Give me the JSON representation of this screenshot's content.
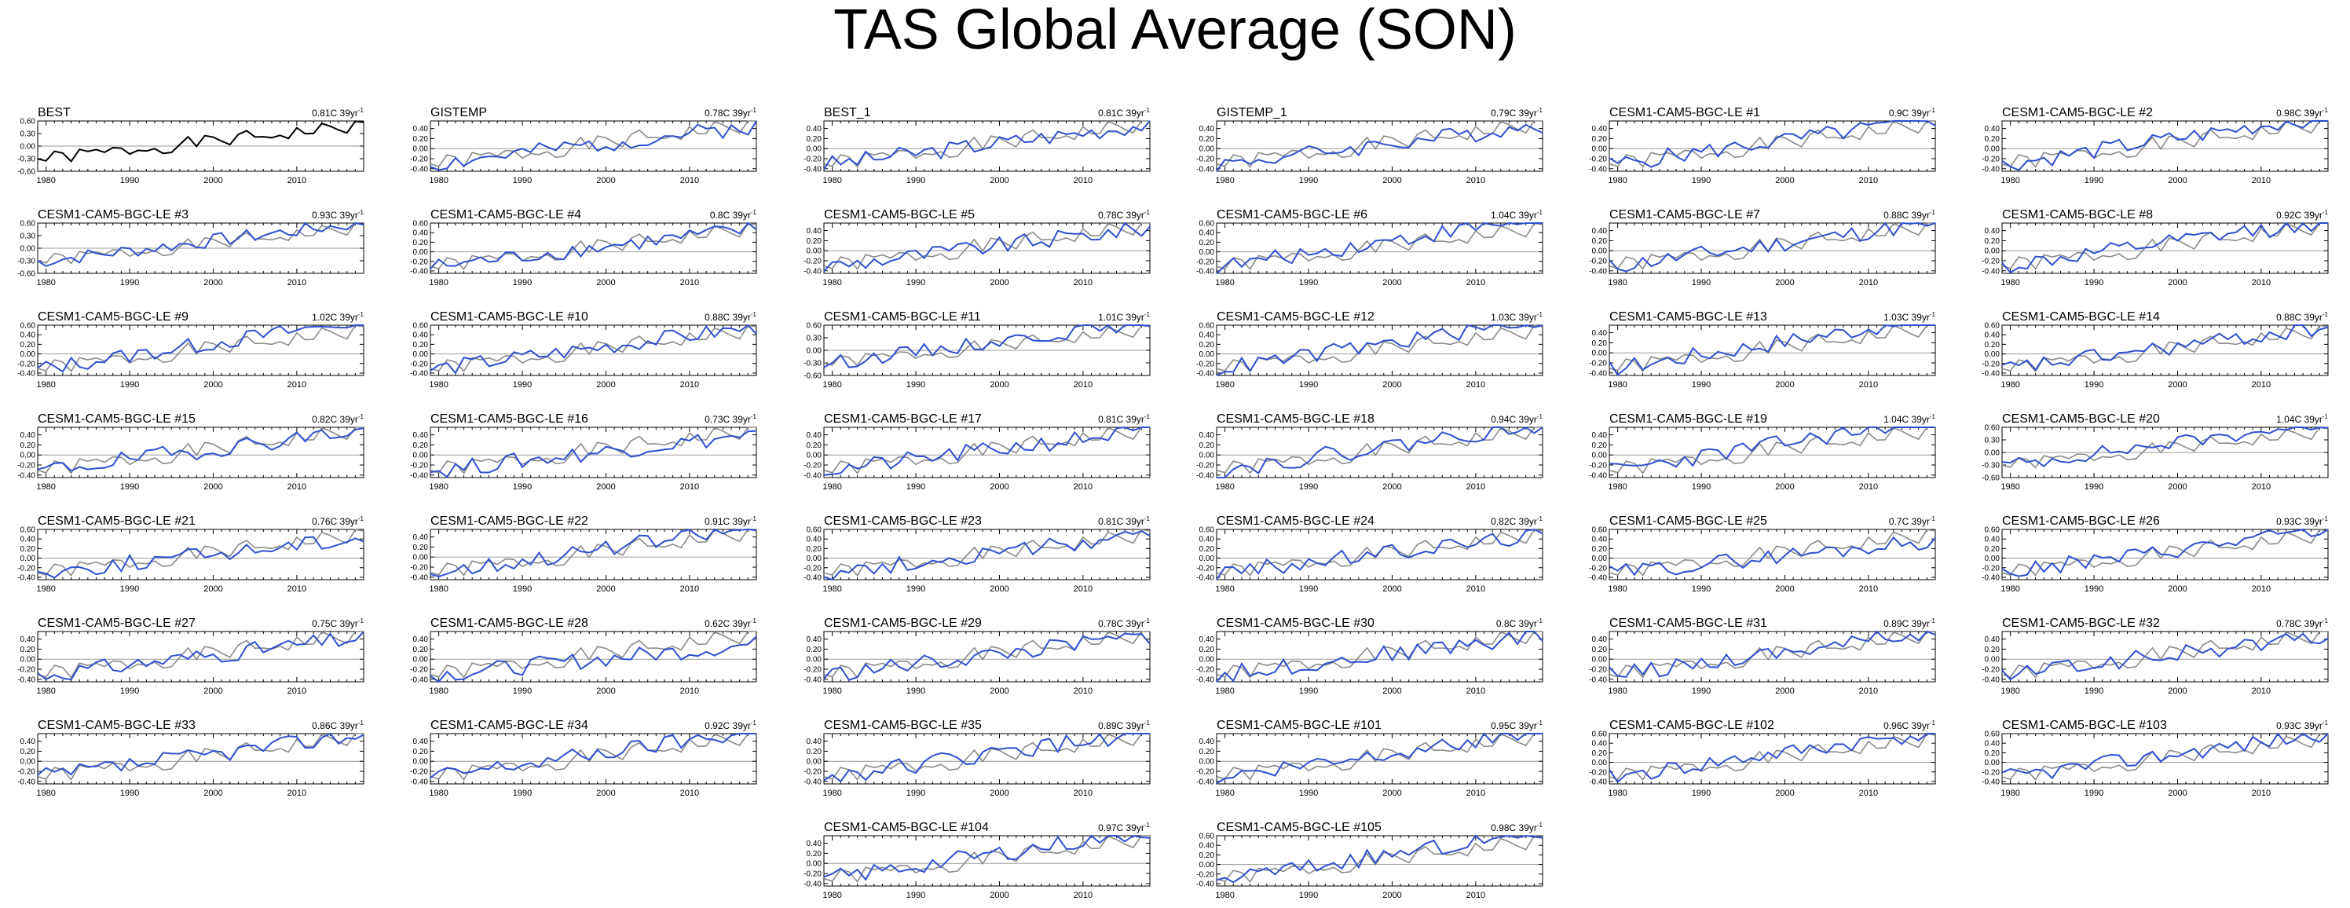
{
  "title": "TAS Global Average (SON)",
  "colors": {
    "observed": "#000000",
    "obs_overlay": "#8a8a8a",
    "model": "#3050d0",
    "zero_line": "#999999"
  },
  "chart_data": {
    "type": "line",
    "x_range": [
      1979,
      2018
    ],
    "x_ticks": [
      "1980",
      "1990",
      "2000",
      "2010"
    ],
    "panels": [
      {
        "title": "BEST",
        "trend": "0.81C 39yr",
        "yticks": [
          "0.60",
          "0.30",
          "0.00",
          "-0.30",
          "-0.60"
        ],
        "ylim": [
          -0.6,
          0.6
        ],
        "obs_only": true,
        "seed": 1
      },
      {
        "title": "GISTEMP",
        "trend": "0.78C 39yr",
        "yticks": [
          "0.40",
          "0.20",
          "0.00",
          "-0.20",
          "-0.40"
        ],
        "ylim": [
          -0.45,
          0.55
        ],
        "seed": 2
      },
      {
        "title": "BEST_1",
        "trend": "0.81C 39yr",
        "yticks": [
          "0.40",
          "0.20",
          "0.00",
          "-0.20",
          "-0.40"
        ],
        "ylim": [
          -0.45,
          0.55
        ],
        "seed": 3
      },
      {
        "title": "GISTEMP_1",
        "trend": "0.79C 39yr",
        "yticks": [
          "0.40",
          "0.20",
          "0.00",
          "-0.20",
          "-0.40"
        ],
        "ylim": [
          -0.45,
          0.55
        ],
        "seed": 4
      },
      {
        "title": "CESM1-CAM5-BGC-LE #1",
        "trend": "0.9C 39yr",
        "yticks": [
          "0.40",
          "0.20",
          "0.00",
          "-0.20",
          "-0.40"
        ],
        "ylim": [
          -0.45,
          0.55
        ],
        "seed": 5
      },
      {
        "title": "CESM1-CAM5-BGC-LE #2",
        "trend": "0.98C 39yr",
        "yticks": [
          "0.40",
          "0.20",
          "0.00",
          "-0.20",
          "-0.40"
        ],
        "ylim": [
          -0.45,
          0.55
        ],
        "seed": 6
      },
      {
        "title": "CESM1-CAM5-BGC-LE #3",
        "trend": "0.93C 39yr",
        "yticks": [
          "0.60",
          "0.30",
          "0.00",
          "-0.30",
          "-0.60"
        ],
        "ylim": [
          -0.6,
          0.6
        ],
        "seed": 7
      },
      {
        "title": "CESM1-CAM5-BGC-LE #4",
        "trend": "0.8C 39yr",
        "yticks": [
          "0.60",
          "0.40",
          "0.20",
          "0.00",
          "-0.20",
          "-0.40"
        ],
        "ylim": [
          -0.45,
          0.6
        ],
        "seed": 8
      },
      {
        "title": "CESM1-CAM5-BGC-LE #5",
        "trend": "0.78C 39yr",
        "yticks": [
          "0.40",
          "0.20",
          "0.00",
          "-0.20",
          "-0.40"
        ],
        "ylim": [
          -0.45,
          0.55
        ],
        "seed": 9
      },
      {
        "title": "CESM1-CAM5-BGC-LE #6",
        "trend": "1.04C 39yr",
        "yticks": [
          "0.60",
          "0.40",
          "0.20",
          "0.00",
          "-0.20",
          "-0.40"
        ],
        "ylim": [
          -0.45,
          0.6
        ],
        "seed": 10
      },
      {
        "title": "CESM1-CAM5-BGC-LE #7",
        "trend": "0.88C 39yr",
        "yticks": [
          "0.40",
          "0.20",
          "0.00",
          "-0.20",
          "-0.40"
        ],
        "ylim": [
          -0.45,
          0.55
        ],
        "seed": 11
      },
      {
        "title": "CESM1-CAM5-BGC-LE #8",
        "trend": "0.92C 39yr",
        "yticks": [
          "0.40",
          "0.20",
          "0.00",
          "-0.20",
          "-0.40"
        ],
        "ylim": [
          -0.45,
          0.55
        ],
        "seed": 12
      },
      {
        "title": "CESM1-CAM5-BGC-LE #9",
        "trend": "1.02C 39yr",
        "yticks": [
          "0.60",
          "0.40",
          "0.20",
          "0.00",
          "-0.20",
          "-0.40"
        ],
        "ylim": [
          -0.45,
          0.6
        ],
        "seed": 13
      },
      {
        "title": "CESM1-CAM5-BGC-LE #10",
        "trend": "0.88C 39yr",
        "yticks": [
          "0.60",
          "0.40",
          "0.20",
          "0.00",
          "-0.20",
          "-0.40"
        ],
        "ylim": [
          -0.45,
          0.6
        ],
        "seed": 14
      },
      {
        "title": "CESM1-CAM5-BGC-LE #11",
        "trend": "1.01C 39yr",
        "yticks": [
          "0.60",
          "0.30",
          "0.00",
          "-0.30",
          "-0.60"
        ],
        "ylim": [
          -0.6,
          0.6
        ],
        "seed": 15
      },
      {
        "title": "CESM1-CAM5-BGC-LE #12",
        "trend": "1.03C 39yr",
        "yticks": [
          "0.60",
          "0.40",
          "0.20",
          "0.00",
          "-0.20",
          "-0.40"
        ],
        "ylim": [
          -0.45,
          0.6
        ],
        "seed": 16
      },
      {
        "title": "CESM1-CAM5-BGC-LE #13",
        "trend": "1.03C 39yr",
        "yticks": [
          "0.40",
          "0.20",
          "0.00",
          "-0.20",
          "-0.40"
        ],
        "ylim": [
          -0.45,
          0.55
        ],
        "seed": 17
      },
      {
        "title": "CESM1-CAM5-BGC-LE #14",
        "trend": "0.88C 39yr",
        "yticks": [
          "0.60",
          "0.40",
          "0.20",
          "0.00",
          "-0.20",
          "-0.40"
        ],
        "ylim": [
          -0.45,
          0.6
        ],
        "seed": 18
      },
      {
        "title": "CESM1-CAM5-BGC-LE #15",
        "trend": "0.82C 39yr",
        "yticks": [
          "0.40",
          "0.20",
          "0.00",
          "-0.20",
          "-0.40"
        ],
        "ylim": [
          -0.45,
          0.55
        ],
        "seed": 19
      },
      {
        "title": "CESM1-CAM5-BGC-LE #16",
        "trend": "0.73C 39yr",
        "yticks": [
          "0.40",
          "0.20",
          "0.00",
          "-0.20",
          "-0.40"
        ],
        "ylim": [
          -0.45,
          0.55
        ],
        "seed": 20
      },
      {
        "title": "CESM1-CAM5-BGC-LE #17",
        "trend": "0.81C 39yr",
        "yticks": [
          "0.40",
          "0.20",
          "0.00",
          "-0.20",
          "-0.40"
        ],
        "ylim": [
          -0.45,
          0.55
        ],
        "seed": 21
      },
      {
        "title": "CESM1-CAM5-BGC-LE #18",
        "trend": "0.94C 39yr",
        "yticks": [
          "0.40",
          "0.20",
          "0.00",
          "-0.20",
          "-0.40"
        ],
        "ylim": [
          -0.45,
          0.55
        ],
        "seed": 22
      },
      {
        "title": "CESM1-CAM5-BGC-LE #19",
        "trend": "1.04C 39yr",
        "yticks": [
          "0.40",
          "0.20",
          "0.00",
          "-0.20",
          "-0.40"
        ],
        "ylim": [
          -0.45,
          0.55
        ],
        "seed": 23
      },
      {
        "title": "CESM1-CAM5-BGC-LE #20",
        "trend": "1.04C 39yr",
        "yticks": [
          "0.60",
          "0.30",
          "0.00",
          "-0.30",
          "-0.60"
        ],
        "ylim": [
          -0.6,
          0.6
        ],
        "seed": 24
      },
      {
        "title": "CESM1-CAM5-BGC-LE #21",
        "trend": "0.76C 39yr",
        "yticks": [
          "0.60",
          "0.40",
          "0.20",
          "0.00",
          "-0.20",
          "-0.40"
        ],
        "ylim": [
          -0.45,
          0.6
        ],
        "seed": 25
      },
      {
        "title": "CESM1-CAM5-BGC-LE #22",
        "trend": "0.91C 39yr",
        "yticks": [
          "0.40",
          "0.20",
          "0.00",
          "-0.20",
          "-0.40"
        ],
        "ylim": [
          -0.45,
          0.55
        ],
        "seed": 26
      },
      {
        "title": "CESM1-CAM5-BGC-LE #23",
        "trend": "0.81C 39yr",
        "yticks": [
          "0.60",
          "0.40",
          "0.20",
          "0.00",
          "-0.20",
          "-0.40"
        ],
        "ylim": [
          -0.45,
          0.6
        ],
        "seed": 27
      },
      {
        "title": "CESM1-CAM5-BGC-LE #24",
        "trend": "0.82C 39yr",
        "yticks": [
          "0.60",
          "0.40",
          "0.20",
          "0.00",
          "-0.20",
          "-0.40"
        ],
        "ylim": [
          -0.45,
          0.6
        ],
        "seed": 28
      },
      {
        "title": "CESM1-CAM5-BGC-LE #25",
        "trend": "0.7C 39yr",
        "yticks": [
          "0.60",
          "0.40",
          "0.20",
          "0.00",
          "-0.20",
          "-0.40"
        ],
        "ylim": [
          -0.45,
          0.6
        ],
        "seed": 29
      },
      {
        "title": "CESM1-CAM5-BGC-LE #26",
        "trend": "0.93C 39yr",
        "yticks": [
          "0.60",
          "0.40",
          "0.20",
          "0.00",
          "-0.20",
          "-0.40"
        ],
        "ylim": [
          -0.45,
          0.6
        ],
        "seed": 30
      },
      {
        "title": "CESM1-CAM5-BGC-LE #27",
        "trend": "0.75C 39yr",
        "yticks": [
          "0.40",
          "0.20",
          "0.00",
          "-0.20",
          "-0.40"
        ],
        "ylim": [
          -0.45,
          0.55
        ],
        "seed": 31
      },
      {
        "title": "CESM1-CAM5-BGC-LE #28",
        "trend": "0.62C 39yr",
        "yticks": [
          "0.40",
          "0.20",
          "0.00",
          "-0.20",
          "-0.40"
        ],
        "ylim": [
          -0.45,
          0.55
        ],
        "seed": 32
      },
      {
        "title": "CESM1-CAM5-BGC-LE #29",
        "trend": "0.78C 39yr",
        "yticks": [
          "0.40",
          "0.20",
          "0.00",
          "-0.20",
          "-0.40"
        ],
        "ylim": [
          -0.45,
          0.55
        ],
        "seed": 33
      },
      {
        "title": "CESM1-CAM5-BGC-LE #30",
        "trend": "0.8C 39yr",
        "yticks": [
          "0.40",
          "0.20",
          "0.00",
          "-0.20",
          "-0.40"
        ],
        "ylim": [
          -0.45,
          0.55
        ],
        "seed": 34
      },
      {
        "title": "CESM1-CAM5-BGC-LE #31",
        "trend": "0.89C 39yr",
        "yticks": [
          "0.40",
          "0.20",
          "0.00",
          "-0.20",
          "-0.40"
        ],
        "ylim": [
          -0.45,
          0.55
        ],
        "seed": 35
      },
      {
        "title": "CESM1-CAM5-BGC-LE #32",
        "trend": "0.78C 39yr",
        "yticks": [
          "0.40",
          "0.20",
          "0.00",
          "-0.20",
          "-0.40"
        ],
        "ylim": [
          -0.45,
          0.55
        ],
        "seed": 36
      },
      {
        "title": "CESM1-CAM5-BGC-LE #33",
        "trend": "0.86C 39yr",
        "yticks": [
          "0.40",
          "0.20",
          "0.00",
          "-0.20",
          "-0.40"
        ],
        "ylim": [
          -0.45,
          0.55
        ],
        "seed": 37
      },
      {
        "title": "CESM1-CAM5-BGC-LE #34",
        "trend": "0.92C 39yr",
        "yticks": [
          "0.40",
          "0.20",
          "0.00",
          "-0.20",
          "-0.40"
        ],
        "ylim": [
          -0.45,
          0.55
        ],
        "seed": 38
      },
      {
        "title": "CESM1-CAM5-BGC-LE #35",
        "trend": "0.89C 39yr",
        "yticks": [
          "0.40",
          "0.20",
          "0.00",
          "-0.20",
          "-0.40"
        ],
        "ylim": [
          -0.45,
          0.55
        ],
        "seed": 39
      },
      {
        "title": "CESM1-CAM5-BGC-LE #101",
        "trend": "0.95C 39yr",
        "yticks": [
          "0.40",
          "0.20",
          "0.00",
          "-0.20",
          "-0.40"
        ],
        "ylim": [
          -0.45,
          0.55
        ],
        "seed": 40
      },
      {
        "title": "CESM1-CAM5-BGC-LE #102",
        "trend": "0.96C 39yr",
        "yticks": [
          "0.60",
          "0.40",
          "0.20",
          "0.00",
          "-0.20",
          "-0.40"
        ],
        "ylim": [
          -0.45,
          0.6
        ],
        "seed": 41
      },
      {
        "title": "CESM1-CAM5-BGC-LE #103",
        "trend": "0.93C 39yr",
        "yticks": [
          "0.60",
          "0.40",
          "0.20",
          "0.00",
          "-0.20",
          "-0.40"
        ],
        "ylim": [
          -0.45,
          0.6
        ],
        "seed": 42
      },
      {
        "title": "CESM1-CAM5-BGC-LE #104",
        "trend": "0.97C 39yr",
        "yticks": [
          "0.40",
          "0.20",
          "0.00",
          "-0.20",
          "-0.40"
        ],
        "ylim": [
          -0.45,
          0.55
        ],
        "seed": 43
      },
      {
        "title": "CESM1-CAM5-BGC-LE #105",
        "trend": "0.98C 39yr",
        "yticks": [
          "0.60",
          "0.40",
          "0.20",
          "0.00",
          "-0.20",
          "-0.40"
        ],
        "ylim": [
          -0.45,
          0.6
        ],
        "seed": 44
      }
    ]
  }
}
